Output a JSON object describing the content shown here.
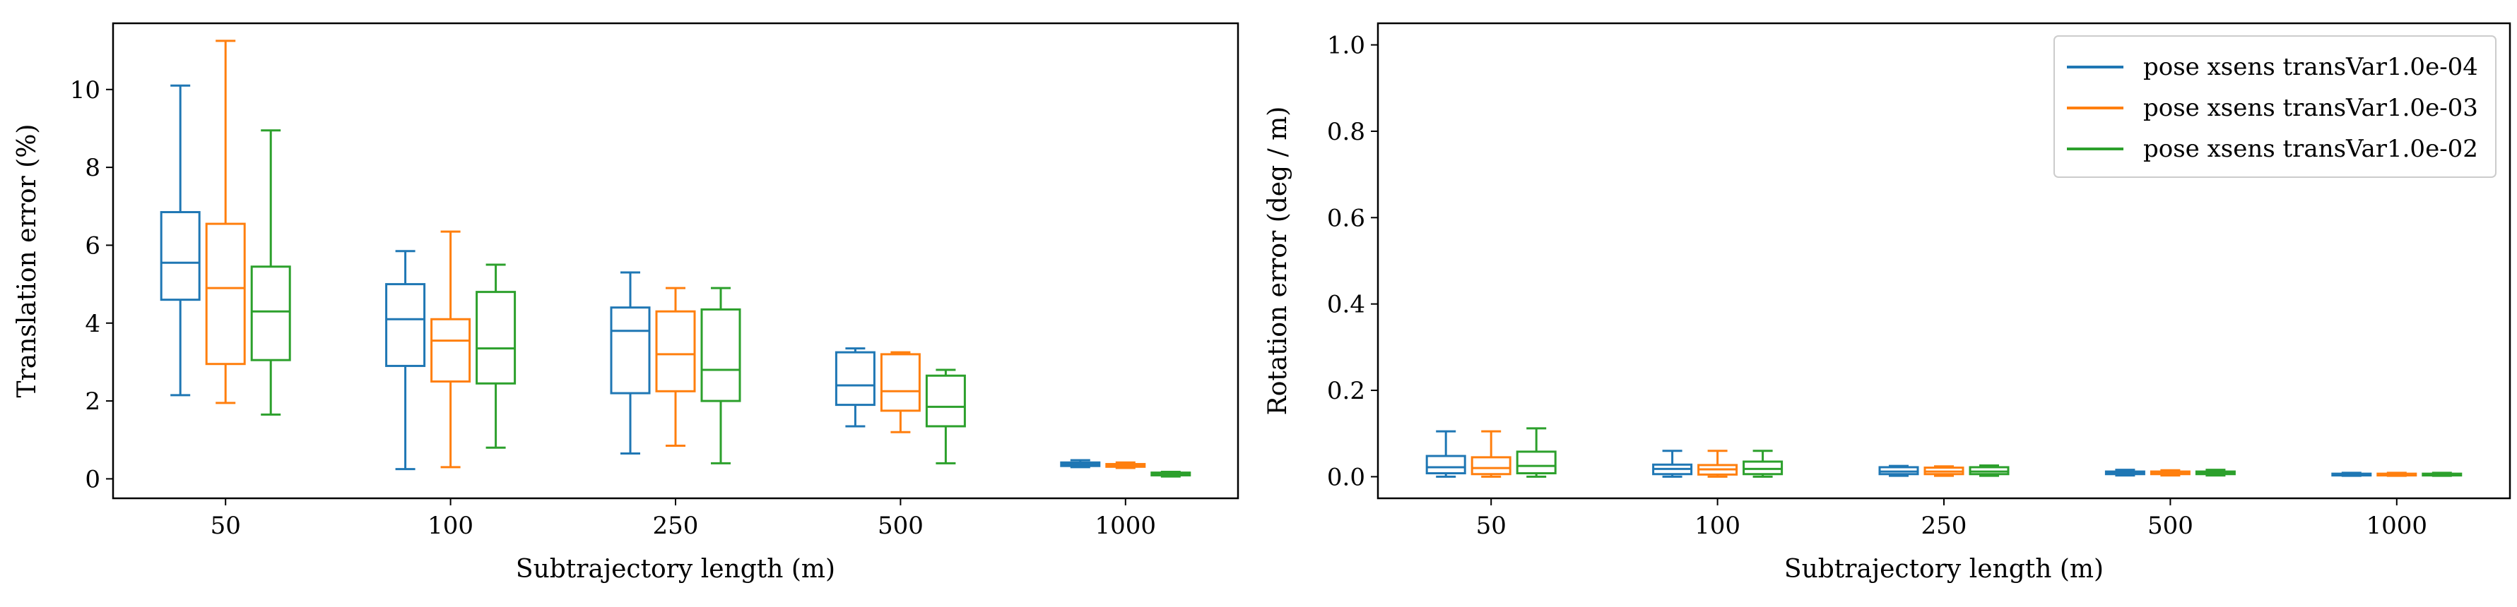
{
  "chart_data": [
    {
      "type": "box",
      "xlabel": "Subtrajectory length (m)",
      "ylabel": "Translation error (%)",
      "categories": [
        "50",
        "100",
        "250",
        "500",
        "1000"
      ],
      "ylim": [
        -0.5,
        11.7
      ],
      "yticks": [
        0,
        2,
        4,
        6,
        8,
        10
      ],
      "grid": false,
      "series": [
        {
          "name": "pose xsens transVar1.0e-04",
          "color": "#1f77b4",
          "boxes": [
            {
              "whislo": 2.15,
              "q1": 4.6,
              "med": 5.55,
              "q3": 6.85,
              "whishi": 10.1
            },
            {
              "whislo": 0.25,
              "q1": 2.9,
              "med": 4.1,
              "q3": 5.0,
              "whishi": 5.85
            },
            {
              "whislo": 0.65,
              "q1": 2.2,
              "med": 3.8,
              "q3": 4.4,
              "whishi": 5.3
            },
            {
              "whislo": 1.35,
              "q1": 1.9,
              "med": 2.4,
              "q3": 3.25,
              "whishi": 3.35
            },
            {
              "whislo": 0.3,
              "q1": 0.33,
              "med": 0.37,
              "q3": 0.42,
              "whishi": 0.48
            }
          ]
        },
        {
          "name": "pose xsens transVar1.0e-03",
          "color": "#ff7f0e",
          "boxes": [
            {
              "whislo": 1.95,
              "q1": 2.95,
              "med": 4.9,
              "q3": 6.55,
              "whishi": 11.25
            },
            {
              "whislo": 0.3,
              "q1": 2.5,
              "med": 3.55,
              "q3": 4.1,
              "whishi": 6.35
            },
            {
              "whislo": 0.85,
              "q1": 2.25,
              "med": 3.2,
              "q3": 4.3,
              "whishi": 4.9
            },
            {
              "whislo": 1.2,
              "q1": 1.75,
              "med": 2.25,
              "q3": 3.2,
              "whishi": 3.25
            },
            {
              "whislo": 0.28,
              "q1": 0.31,
              "med": 0.35,
              "q3": 0.38,
              "whishi": 0.42
            }
          ]
        },
        {
          "name": "pose xsens transVar1.0e-02",
          "color": "#2ca02c",
          "boxes": [
            {
              "whislo": 1.65,
              "q1": 3.05,
              "med": 4.3,
              "q3": 5.45,
              "whishi": 8.95
            },
            {
              "whislo": 0.8,
              "q1": 2.45,
              "med": 3.35,
              "q3": 4.8,
              "whishi": 5.5
            },
            {
              "whislo": 0.4,
              "q1": 2.0,
              "med": 2.8,
              "q3": 4.35,
              "whishi": 4.9
            },
            {
              "whislo": 0.4,
              "q1": 1.35,
              "med": 1.85,
              "q3": 2.65,
              "whishi": 2.8
            },
            {
              "whislo": 0.06,
              "q1": 0.09,
              "med": 0.13,
              "q3": 0.16,
              "whishi": 0.18
            }
          ]
        }
      ]
    },
    {
      "type": "box",
      "xlabel": "Subtrajectory length (m)",
      "ylabel": "Rotation error (deg / m)",
      "categories": [
        "50",
        "100",
        "250",
        "500",
        "1000"
      ],
      "ylim": [
        -0.05,
        1.05
      ],
      "yticks": [
        0.0,
        0.2,
        0.4,
        0.6,
        0.8,
        1.0
      ],
      "grid": false,
      "legend": "top-right",
      "series": [
        {
          "name": "pose xsens transVar1.0e-04",
          "color": "#1f77b4",
          "boxes": [
            {
              "whislo": 0.0,
              "q1": 0.008,
              "med": 0.022,
              "q3": 0.048,
              "whishi": 0.105
            },
            {
              "whislo": 0.0,
              "q1": 0.006,
              "med": 0.018,
              "q3": 0.028,
              "whishi": 0.06
            },
            {
              "whislo": 0.002,
              "q1": 0.006,
              "med": 0.012,
              "q3": 0.022,
              "whishi": 0.025
            },
            {
              "whislo": 0.003,
              "q1": 0.006,
              "med": 0.009,
              "q3": 0.012,
              "whishi": 0.016
            },
            {
              "whislo": 0.002,
              "q1": 0.003,
              "med": 0.005,
              "q3": 0.007,
              "whishi": 0.009
            }
          ]
        },
        {
          "name": "pose xsens transVar1.0e-03",
          "color": "#ff7f0e",
          "boxes": [
            {
              "whislo": 0.0,
              "q1": 0.006,
              "med": 0.02,
              "q3": 0.045,
              "whishi": 0.105
            },
            {
              "whislo": 0.0,
              "q1": 0.005,
              "med": 0.017,
              "q3": 0.027,
              "whishi": 0.06
            },
            {
              "whislo": 0.002,
              "q1": 0.006,
              "med": 0.012,
              "q3": 0.021,
              "whishi": 0.024
            },
            {
              "whislo": 0.003,
              "q1": 0.006,
              "med": 0.009,
              "q3": 0.012,
              "whishi": 0.015
            },
            {
              "whislo": 0.002,
              "q1": 0.003,
              "med": 0.005,
              "q3": 0.007,
              "whishi": 0.009
            }
          ]
        },
        {
          "name": "pose xsens transVar1.0e-02",
          "color": "#2ca02c",
          "boxes": [
            {
              "whislo": 0.0,
              "q1": 0.008,
              "med": 0.025,
              "q3": 0.058,
              "whishi": 0.112
            },
            {
              "whislo": 0.0,
              "q1": 0.006,
              "med": 0.018,
              "q3": 0.035,
              "whishi": 0.06
            },
            {
              "whislo": 0.002,
              "q1": 0.006,
              "med": 0.012,
              "q3": 0.022,
              "whishi": 0.026
            },
            {
              "whislo": 0.003,
              "q1": 0.006,
              "med": 0.009,
              "q3": 0.012,
              "whishi": 0.016
            },
            {
              "whislo": 0.002,
              "q1": 0.003,
              "med": 0.005,
              "q3": 0.007,
              "whishi": 0.009
            }
          ]
        }
      ]
    }
  ]
}
